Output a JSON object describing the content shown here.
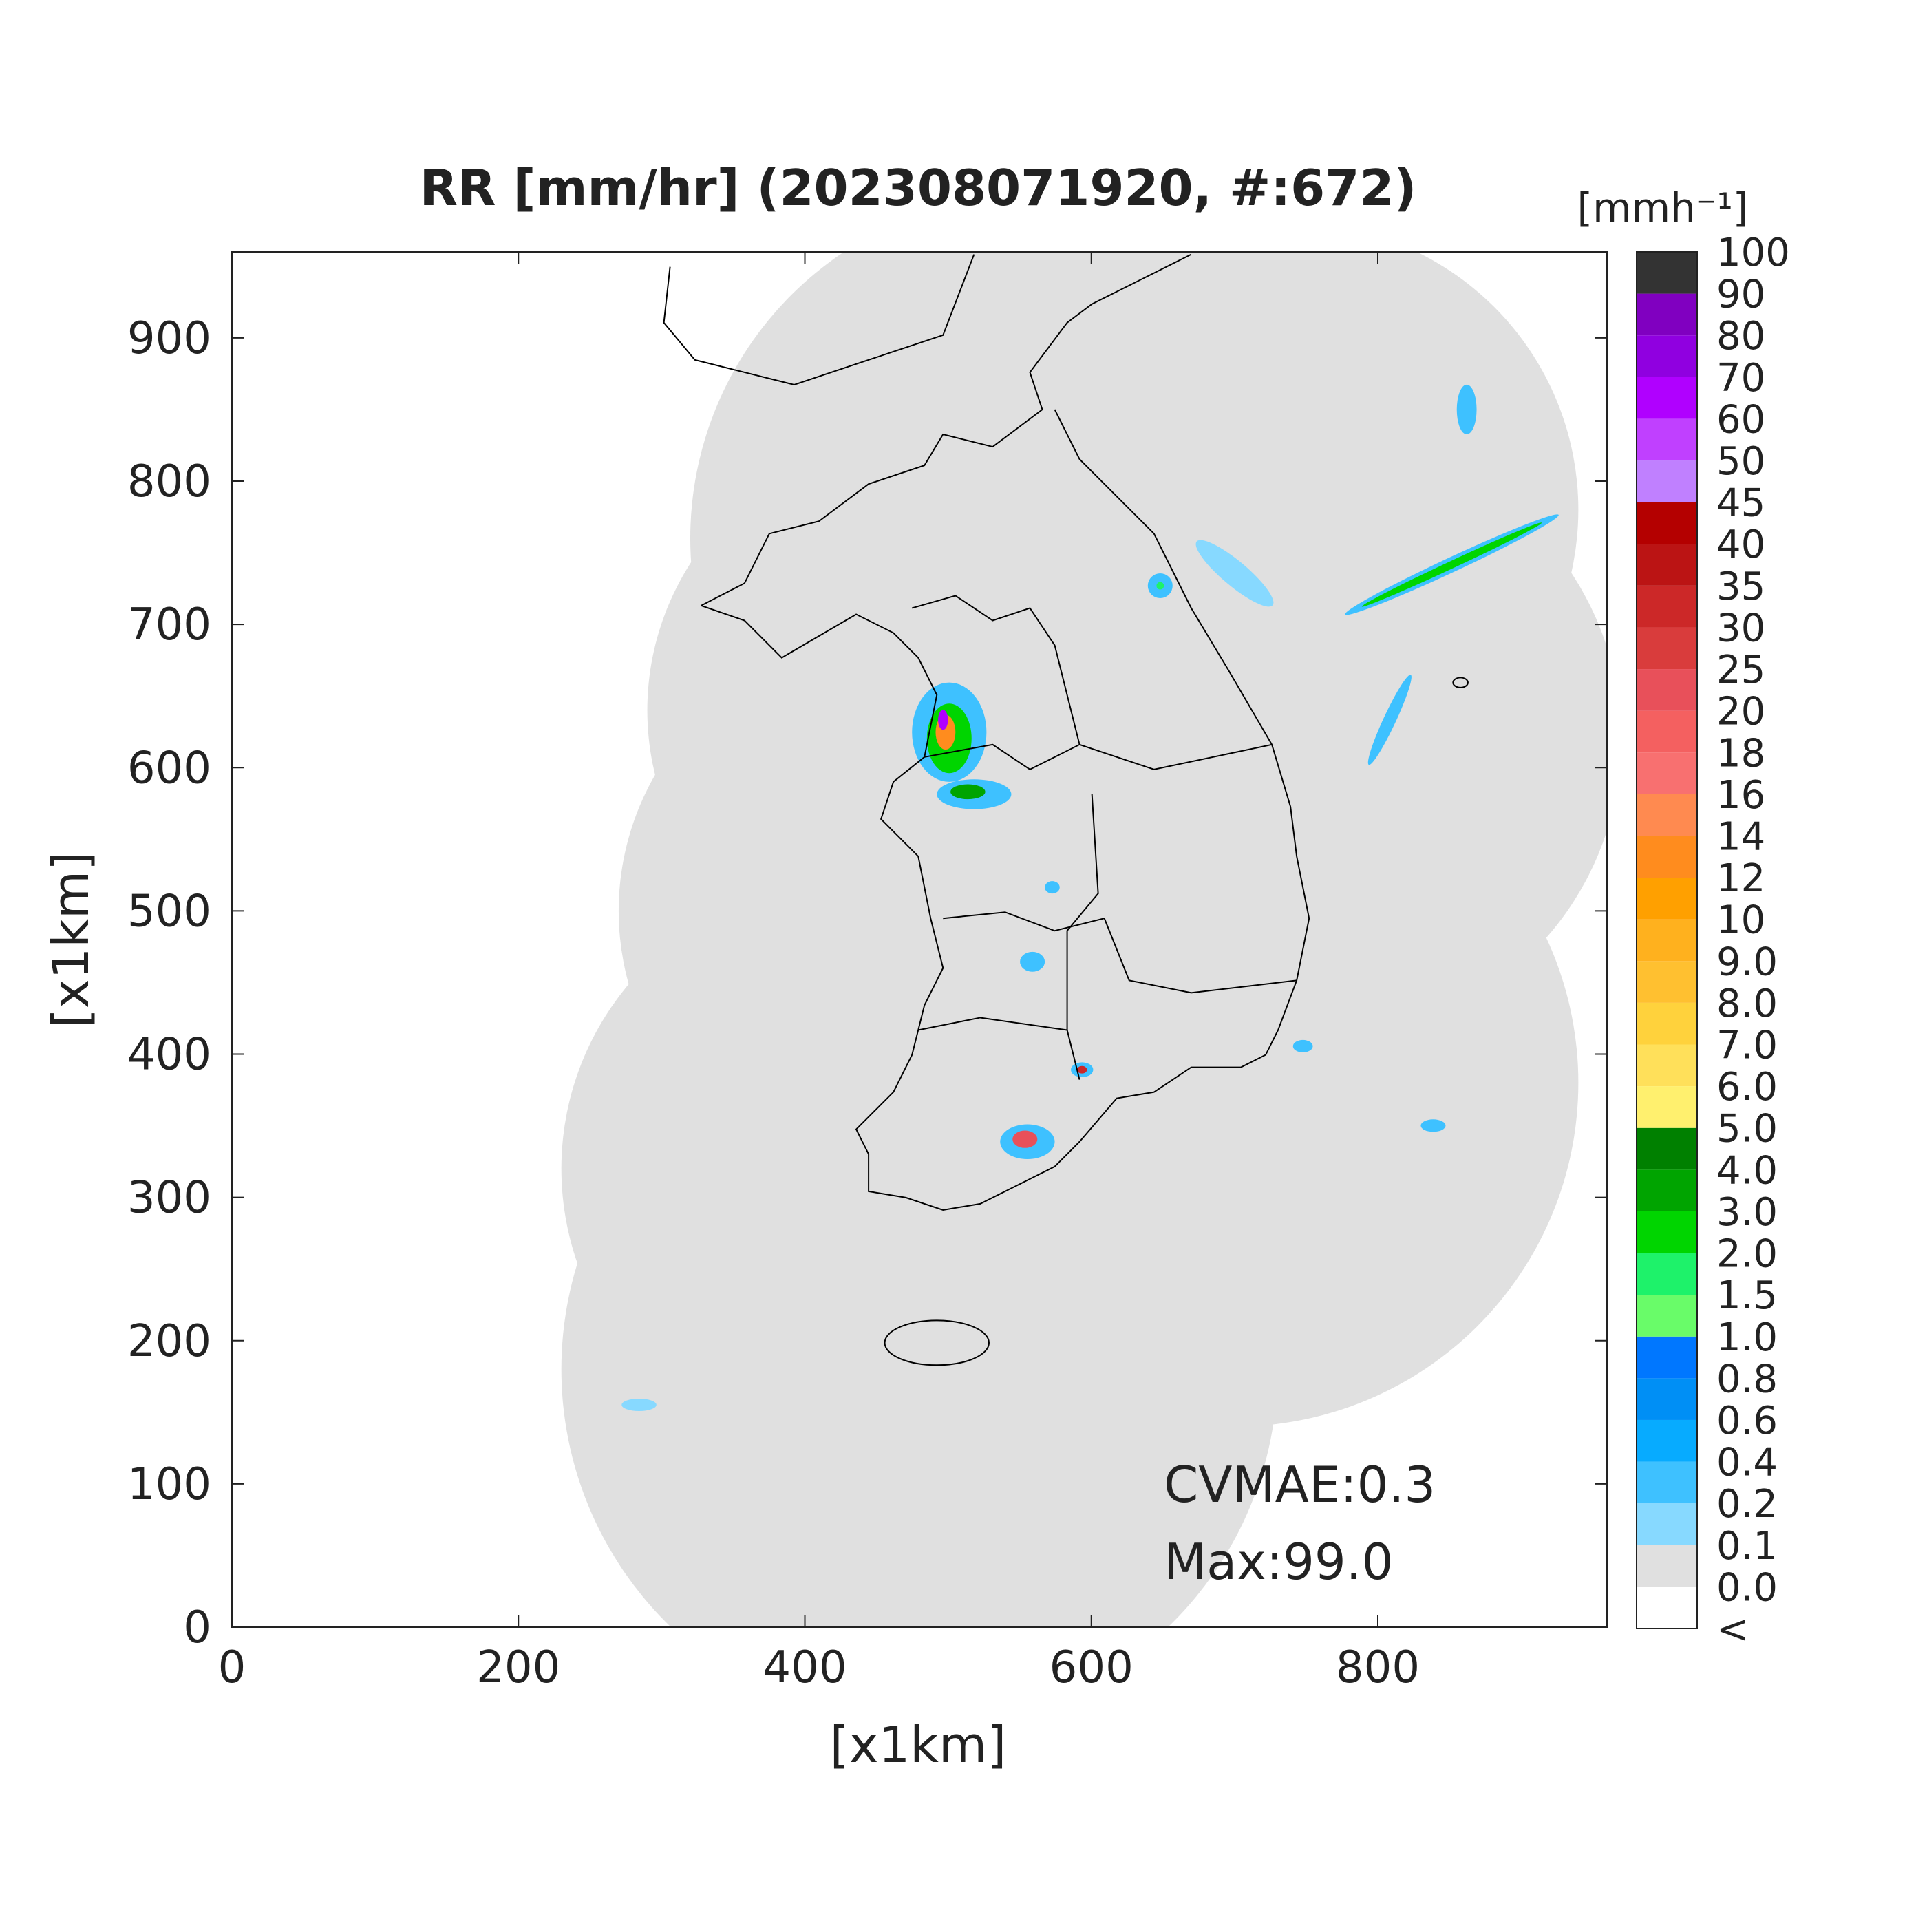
{
  "chart_data": {
    "type": "map",
    "title": "RR [mm/hr] (202308071920, #:672)",
    "xlabel": "[x1km]",
    "ylabel": "[x1km]",
    "xlim": [
      0,
      960
    ],
    "ylim": [
      0,
      960
    ],
    "xticks": [
      0,
      200,
      400,
      600,
      800
    ],
    "yticks": [
      0,
      100,
      200,
      300,
      400,
      500,
      600,
      700,
      800,
      900
    ],
    "annotations": [
      "CVMAE:0.3",
      "Max:99.0"
    ],
    "colorbar": {
      "title": "[mmh⁻¹]",
      "labels": [
        "<",
        "0.0",
        "0.1",
        "0.2",
        "0.4",
        "0.6",
        "0.8",
        "1.0",
        "1.5",
        "2.0",
        "3.0",
        "4.0",
        "5.0",
        "6.0",
        "7.0",
        "8.0",
        "9.0",
        "10",
        "12",
        "14",
        "16",
        "18",
        "20",
        "25",
        "30",
        "35",
        "40",
        "45",
        "50",
        "60",
        "70",
        "80",
        "90",
        "100"
      ],
      "colors": [
        "#ffffff",
        "#e0e0e0",
        "#87d9ff",
        "#3ec1ff",
        "#07abff",
        "#008ff5",
        "#0077ff",
        "#69fc69",
        "#1ef26a",
        "#00d500",
        "#00a400",
        "#008000",
        "#fff06e",
        "#ffe05a",
        "#ffd23c",
        "#ffc030",
        "#ffb11e",
        "#ffa000",
        "#ff8c1e",
        "#ff8a50",
        "#f87070",
        "#f46060",
        "#e8505a",
        "#d93c3c",
        "#cc2828",
        "#bb1414",
        "#b40000",
        "#c080ff",
        "#c040ff",
        "#b000ff",
        "#9000e0",
        "#8000c0",
        "#333333"
      ]
    }
  }
}
